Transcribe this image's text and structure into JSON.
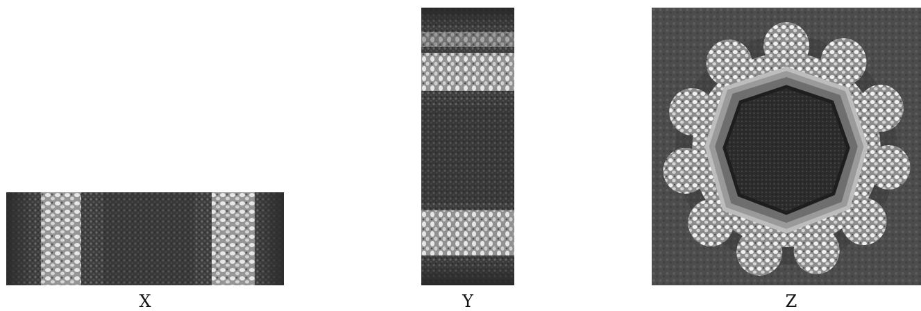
{
  "figure": {
    "panels": [
      {
        "id": "x",
        "label": "X",
        "view": "side-projection"
      },
      {
        "id": "y",
        "label": "Y",
        "view": "side-projection"
      },
      {
        "id": "z",
        "label": "Z",
        "view": "top-projection"
      }
    ],
    "colors": {
      "background": "#ffffff",
      "mid_gray": "#4a4a4a",
      "dark": "#2a2a2a",
      "bright": "#e8e8e8"
    }
  }
}
